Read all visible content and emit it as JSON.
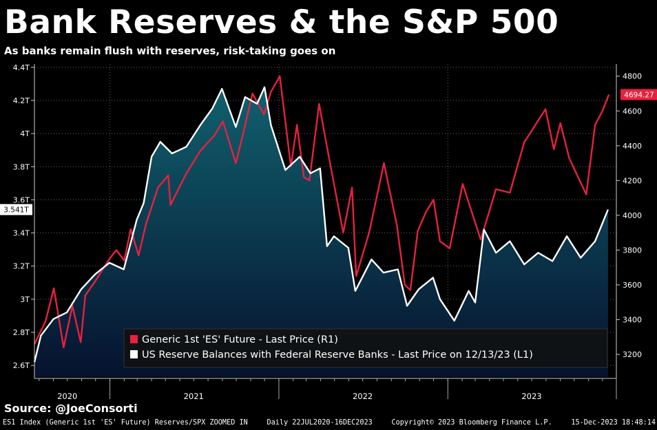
{
  "header": {
    "title": "Bank Reserves & the S&P 500",
    "subtitle": "As banks remain flush with reserves, risk-taking goes on"
  },
  "source": "Source: @JoeConsorti",
  "footer": {
    "ticker": "ES1 Index (Generic 1st 'ES' Future) Reserves/SPX ZOOMED IN",
    "range": "Daily 22JUL2020-16DEC2023",
    "copyright": "Copyright© 2023 Bloomberg Finance L.P.",
    "timestamp": "15-Dec-2023 18:48:14"
  },
  "colors": {
    "background": "#000000",
    "spx": "#e8213f",
    "reserves": "#ffffff",
    "area_top": "#10606e",
    "area_bottom": "#06122e"
  },
  "chart_data": {
    "type": "line",
    "legend_position": "bottom-right",
    "grid": true,
    "x_labels": [
      "2020",
      "2021",
      "2022",
      "2023"
    ],
    "left_axis": {
      "ticks": [
        "2.6T",
        "2.8T",
        "3T",
        "3.2T",
        "3.4T",
        "3.6T",
        "3.8T",
        "4T",
        "4.2T",
        "4.4T"
      ],
      "tick_values": [
        2.6,
        2.8,
        3.0,
        3.2,
        3.4,
        3.6,
        3.8,
        4.0,
        4.2,
        4.4
      ],
      "ylim": [
        2.53,
        4.42
      ],
      "last_value_label": "3.541T",
      "last_value": 3.541
    },
    "right_axis": {
      "ticks": [
        "3200",
        "3400",
        "3600",
        "3800",
        "4000",
        "4200",
        "4400",
        "4600",
        "4800"
      ],
      "tick_values": [
        3200,
        3400,
        3600,
        3800,
        4000,
        4200,
        4400,
        4600,
        4800
      ],
      "ylim": [
        3070,
        4870
      ],
      "last_value_label": "4694.27",
      "last_value": 4694.27
    },
    "series": [
      {
        "name": "Generic 1st 'ES' Future - Last Price (R1)",
        "axis": "right",
        "color": "#e8213f",
        "x": [
          "2020-07-22",
          "2020-08-15",
          "2020-09-02",
          "2020-09-23",
          "2020-10-12",
          "2020-10-30",
          "2020-11-09",
          "2020-11-30",
          "2020-12-31",
          "2021-01-15",
          "2021-02-01",
          "2021-02-15",
          "2021-03-04",
          "2021-03-20",
          "2021-04-15",
          "2021-05-07",
          "2021-05-12",
          "2021-06-15",
          "2021-07-15",
          "2021-08-15",
          "2021-09-02",
          "2021-09-30",
          "2021-10-15",
          "2021-11-05",
          "2021-11-30",
          "2021-12-15",
          "2022-01-03",
          "2022-01-27",
          "2022-02-09",
          "2022-02-24",
          "2022-03-08",
          "2022-03-29",
          "2022-04-15",
          "2022-05-20",
          "2022-06-08",
          "2022-06-17",
          "2022-07-15",
          "2022-08-16",
          "2022-09-13",
          "2022-09-30",
          "2022-10-12",
          "2022-10-28",
          "2022-11-15",
          "2022-12-01",
          "2022-12-15",
          "2023-01-05",
          "2023-02-02",
          "2023-03-13",
          "2023-04-15",
          "2023-05-15",
          "2023-06-15",
          "2023-07-31",
          "2023-08-18",
          "2023-09-01",
          "2023-09-20",
          "2023-10-04",
          "2023-10-27",
          "2023-11-15",
          "2023-12-01",
          "2023-12-15"
        ],
        "values": [
          3260,
          3390,
          3580,
          3240,
          3480,
          3270,
          3540,
          3620,
          3750,
          3800,
          3740,
          3920,
          3770,
          3950,
          4160,
          4230,
          4060,
          4240,
          4370,
          4460,
          4540,
          4300,
          4460,
          4700,
          4580,
          4710,
          4800,
          4280,
          4520,
          4220,
          4200,
          4640,
          4390,
          3900,
          4160,
          3650,
          3900,
          4300,
          3940,
          3600,
          3570,
          3910,
          4020,
          4090,
          3850,
          3810,
          4180,
          3860,
          4150,
          4130,
          4420,
          4610,
          4380,
          4530,
          4330,
          4250,
          4120,
          4520,
          4600,
          4694.27
        ]
      },
      {
        "name": "US Reserve Balances with Federal Reserve Banks - Last Price on 12/13/23 (L1)",
        "axis": "left",
        "color": "#ffffff",
        "x": [
          "2020-07-22",
          "2020-08-05",
          "2020-09-01",
          "2020-09-30",
          "2020-10-31",
          "2020-11-30",
          "2020-12-31",
          "2021-01-31",
          "2021-02-28",
          "2021-03-15",
          "2021-04-01",
          "2021-04-20",
          "2021-05-15",
          "2021-06-15",
          "2021-07-15",
          "2021-08-10",
          "2021-08-31",
          "2021-09-30",
          "2021-10-20",
          "2021-11-15",
          "2021-12-01",
          "2021-12-15",
          "2022-01-15",
          "2022-02-15",
          "2022-03-10",
          "2022-03-31",
          "2022-04-15",
          "2022-04-30",
          "2022-05-31",
          "2022-06-15",
          "2022-07-20",
          "2022-08-15",
          "2022-09-15",
          "2022-10-05",
          "2022-10-30",
          "2022-11-30",
          "2022-12-15",
          "2023-01-15",
          "2023-02-15",
          "2023-03-01",
          "2023-03-20",
          "2023-04-15",
          "2023-05-15",
          "2023-06-15",
          "2023-07-15",
          "2023-08-15",
          "2023-09-15",
          "2023-10-15",
          "2023-11-15",
          "2023-12-13"
        ],
        "values": [
          2.62,
          2.78,
          2.88,
          2.92,
          3.06,
          3.15,
          3.22,
          3.18,
          3.48,
          3.58,
          3.86,
          3.95,
          3.88,
          3.92,
          4.05,
          4.15,
          4.27,
          4.04,
          4.22,
          4.18,
          4.28,
          4.05,
          3.78,
          3.86,
          3.76,
          3.79,
          3.32,
          3.38,
          3.31,
          3.05,
          3.24,
          3.16,
          3.18,
          2.96,
          3.06,
          3.13,
          3.0,
          2.87,
          3.05,
          2.98,
          3.42,
          3.28,
          3.35,
          3.21,
          3.28,
          3.23,
          3.38,
          3.25,
          3.35,
          3.541
        ]
      }
    ]
  }
}
